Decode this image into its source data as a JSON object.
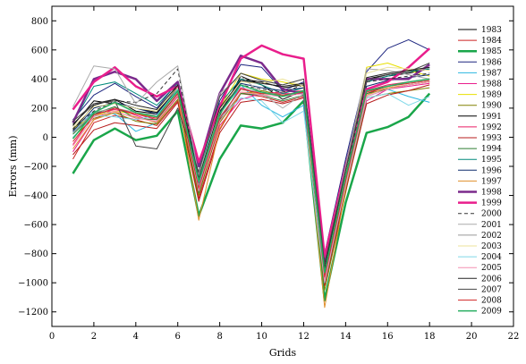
{
  "chart_data": {
    "type": "line",
    "title": "",
    "xlabel": "Grids",
    "ylabel": "Errors (mm)",
    "xlim": [
      0,
      22
    ],
    "ylim": [
      -1300,
      900
    ],
    "xticks": [
      0,
      2,
      4,
      6,
      8,
      10,
      12,
      14,
      16,
      18,
      20,
      22
    ],
    "yticks": [
      -1200,
      -1000,
      -800,
      -600,
      -400,
      -200,
      0,
      200,
      400,
      600,
      800
    ],
    "grid": false,
    "legend_position": "right",
    "x": [
      1,
      2,
      3,
      4,
      5,
      6,
      7,
      8,
      9,
      10,
      11,
      12,
      13,
      14,
      15,
      16,
      17,
      18
    ],
    "series": [
      {
        "name": "1983",
        "color": "#000000",
        "width": 1,
        "dash": "",
        "values": [
          50,
          220,
          260,
          180,
          160,
          340,
          -300,
          150,
          420,
          360,
          260,
          320,
          -900,
          -200,
          380,
          420,
          440,
          470
        ]
      },
      {
        "name": "1984",
        "color": "#cc2222",
        "width": 1,
        "dash": "",
        "values": [
          -150,
          100,
          150,
          120,
          80,
          250,
          -420,
          50,
          300,
          280,
          240,
          280,
          -1000,
          -350,
          300,
          350,
          380,
          400
        ]
      },
      {
        "name": "1985",
        "color": "#1aa64a",
        "width": 2.5,
        "dash": "",
        "values": [
          -250,
          -20,
          60,
          -20,
          10,
          180,
          -540,
          -150,
          80,
          60,
          100,
          250,
          -1120,
          -450,
          30,
          70,
          140,
          300
        ]
      },
      {
        "name": "1986",
        "color": "#1a237e",
        "width": 1,
        "dash": "",
        "values": [
          120,
          290,
          370,
          280,
          200,
          380,
          -200,
          250,
          500,
          480,
          320,
          380,
          -800,
          -150,
          450,
          610,
          670,
          600
        ]
      },
      {
        "name": "1987",
        "color": "#29b6e0",
        "width": 1,
        "dash": "",
        "values": [
          30,
          180,
          160,
          40,
          100,
          300,
          -350,
          100,
          360,
          220,
          140,
          220,
          -950,
          -300,
          280,
          330,
          280,
          240
        ]
      },
      {
        "name": "1988",
        "color": "#e91e8c",
        "width": 1,
        "dash": "",
        "values": [
          -100,
          120,
          200,
          150,
          100,
          280,
          -380,
          80,
          260,
          300,
          300,
          300,
          -980,
          -320,
          250,
          330,
          350,
          370
        ]
      },
      {
        "name": "1989",
        "color": "#e8e000",
        "width": 1,
        "dash": "",
        "values": [
          60,
          150,
          180,
          160,
          140,
          320,
          -300,
          200,
          440,
          400,
          380,
          350,
          -900,
          -250,
          480,
          510,
          460,
          420
        ]
      },
      {
        "name": "1990",
        "color": "#808000",
        "width": 1,
        "dash": "",
        "values": [
          0,
          130,
          170,
          110,
          90,
          260,
          -400,
          100,
          300,
          320,
          290,
          310,
          -1050,
          -380,
          270,
          300,
          320,
          340
        ]
      },
      {
        "name": "1991",
        "color": "#000000",
        "width": 1,
        "dash": "",
        "values": [
          80,
          250,
          230,
          200,
          170,
          350,
          -320,
          170,
          400,
          380,
          340,
          360,
          -920,
          -220,
          400,
          430,
          450,
          480
        ]
      },
      {
        "name": "1992",
        "color": "#e91e63",
        "width": 1,
        "dash": "",
        "values": [
          -50,
          160,
          190,
          160,
          120,
          300,
          -360,
          120,
          340,
          300,
          310,
          320,
          -970,
          -300,
          320,
          360,
          380,
          400
        ]
      },
      {
        "name": "1993",
        "color": "#b71c1c",
        "width": 1,
        "dash": "",
        "values": [
          -120,
          50,
          100,
          80,
          60,
          240,
          -440,
          30,
          240,
          260,
          230,
          270,
          -1020,
          -370,
          230,
          290,
          320,
          360
        ]
      },
      {
        "name": "1994",
        "color": "#2e7d32",
        "width": 1,
        "dash": "",
        "values": [
          20,
          160,
          210,
          130,
          120,
          300,
          -380,
          120,
          300,
          290,
          250,
          290,
          -1000,
          -330,
          300,
          330,
          360,
          380
        ]
      },
      {
        "name": "1995",
        "color": "#00897b",
        "width": 1,
        "dash": "",
        "values": [
          100,
          350,
          380,
          300,
          220,
          370,
          -250,
          230,
          400,
          360,
          300,
          340,
          -880,
          -200,
          380,
          420,
          450,
          470
        ]
      },
      {
        "name": "1996",
        "color": "#0d2a6b",
        "width": 1,
        "dash": "",
        "values": [
          40,
          200,
          240,
          200,
          160,
          330,
          -310,
          170,
          370,
          340,
          320,
          340,
          -930,
          -260,
          350,
          390,
          410,
          430
        ]
      },
      {
        "name": "1997",
        "color": "#e08e2a",
        "width": 1,
        "dash": "",
        "values": [
          -80,
          120,
          170,
          140,
          100,
          290,
          -570,
          60,
          310,
          300,
          290,
          310,
          -1170,
          -350,
          290,
          340,
          360,
          380
        ]
      },
      {
        "name": "1998",
        "color": "#7b2a8c",
        "width": 2.5,
        "dash": "",
        "values": [
          100,
          400,
          450,
          400,
          250,
          380,
          -200,
          300,
          560,
          510,
          330,
          300,
          -850,
          -200,
          400,
          400,
          400,
          500
        ]
      },
      {
        "name": "1999",
        "color": "#e91e8c",
        "width": 2.5,
        "dash": "",
        "values": [
          190,
          380,
          480,
          350,
          280,
          350,
          -170,
          210,
          540,
          630,
          570,
          540,
          -820,
          -200,
          330,
          380,
          480,
          610
        ]
      },
      {
        "name": "2000",
        "color": "#333333",
        "width": 1,
        "dash": "4,3",
        "values": [
          60,
          180,
          250,
          240,
          300,
          470,
          -320,
          180,
          360,
          330,
          310,
          360,
          -950,
          -250,
          380,
          400,
          420,
          440
        ]
      },
      {
        "name": "2001",
        "color": "#aaaaaa",
        "width": 1,
        "dash": "",
        "values": [
          210,
          490,
          470,
          230,
          380,
          490,
          -260,
          300,
          420,
          300,
          200,
          300,
          -880,
          -200,
          470,
          460,
          430,
          400
        ]
      },
      {
        "name": "2002",
        "color": "#999999",
        "width": 1,
        "dash": "",
        "values": [
          30,
          170,
          200,
          170,
          150,
          310,
          -330,
          140,
          330,
          310,
          290,
          310,
          -960,
          -290,
          320,
          350,
          370,
          390
        ]
      },
      {
        "name": "2003",
        "color": "#ece39a",
        "width": 1,
        "dash": "",
        "values": [
          70,
          210,
          230,
          200,
          180,
          340,
          -290,
          190,
          380,
          370,
          400,
          350,
          -910,
          -240,
          440,
          480,
          470,
          460
        ]
      },
      {
        "name": "2004",
        "color": "#7fd8e8",
        "width": 1,
        "dash": "",
        "values": [
          0,
          150,
          140,
          120,
          150,
          330,
          -340,
          130,
          270,
          250,
          100,
          180,
          -1000,
          -330,
          270,
          300,
          220,
          280
        ]
      },
      {
        "name": "2005",
        "color": "#f48fb1",
        "width": 1,
        "dash": "",
        "values": [
          -60,
          140,
          180,
          130,
          110,
          290,
          -370,
          110,
          310,
          290,
          280,
          300,
          -990,
          -320,
          280,
          330,
          360,
          380
        ]
      },
      {
        "name": "2006",
        "color": "#222222",
        "width": 1,
        "dash": "",
        "values": [
          90,
          230,
          260,
          220,
          190,
          360,
          -280,
          200,
          390,
          370,
          350,
          370,
          -900,
          -230,
          410,
          440,
          460,
          480
        ]
      },
      {
        "name": "2007",
        "color": "#444444",
        "width": 1,
        "dash": "",
        "values": [
          110,
          230,
          250,
          -60,
          -80,
          200,
          -240,
          280,
          440,
          390,
          360,
          400,
          -870,
          -220,
          390,
          430,
          450,
          510
        ]
      },
      {
        "name": "2008",
        "color": "#d32f2f",
        "width": 1,
        "dash": "",
        "values": [
          -30,
          150,
          200,
          160,
          130,
          300,
          -350,
          130,
          330,
          300,
          290,
          310,
          -960,
          -300,
          310,
          350,
          370,
          390
        ]
      },
      {
        "name": "2009",
        "color": "#27ae60",
        "width": 1.5,
        "dash": "",
        "values": [
          -10,
          170,
          240,
          170,
          140,
          320,
          -300,
          160,
          360,
          310,
          280,
          320,
          -930,
          -270,
          320,
          350,
          380,
          400
        ]
      }
    ]
  }
}
